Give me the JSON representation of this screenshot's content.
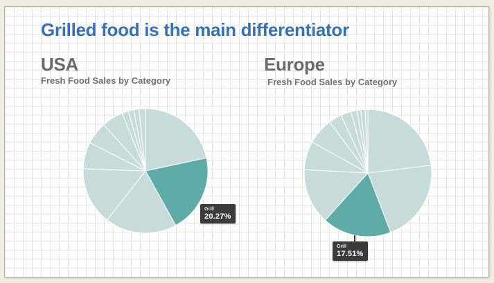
{
  "slide": {
    "title": "Grilled food is the main differentiator"
  },
  "colors": {
    "title_blue": "#3871b3",
    "heading_gray": "#696969",
    "slice_base": "#c7dcda",
    "slice_highlight": "#5faba7",
    "tooltip_bg": "#3b3b3b",
    "tooltip_text": "#ffffff",
    "paper_frame": "#f0ede5"
  },
  "chart_data": [
    {
      "type": "pie",
      "title": "USA",
      "subtitle": "Fresh Food Sales by Category",
      "unit": "%",
      "legend": "none",
      "slices": [
        {
          "label": null,
          "pct": 21.67
        },
        {
          "label": "Grill",
          "pct": 20.27,
          "highlight": true
        },
        {
          "label": null,
          "pct": 18.61
        },
        {
          "label": null,
          "pct": 15.0
        },
        {
          "label": null,
          "pct": 6.94
        },
        {
          "label": null,
          "pct": 5.83
        },
        {
          "label": null,
          "pct": 5.56
        },
        {
          "label": null,
          "pct": 1.67
        },
        {
          "label": null,
          "pct": 1.39
        },
        {
          "label": null,
          "pct": 1.39
        },
        {
          "label": null,
          "pct": 1.67
        }
      ],
      "tooltip": {
        "label": "Grill",
        "value": "20.27%"
      }
    },
    {
      "type": "pie",
      "title": "Europe",
      "subtitle": "Fresh Food Sales by Category",
      "unit": "%",
      "legend": "none",
      "slices": [
        {
          "label": null,
          "pct": 23.06
        },
        {
          "label": null,
          "pct": 21.11
        },
        {
          "label": "Grill",
          "pct": 17.51,
          "highlight": true
        },
        {
          "label": null,
          "pct": 14.17
        },
        {
          "label": null,
          "pct": 7.22
        },
        {
          "label": null,
          "pct": 6.67
        },
        {
          "label": null,
          "pct": 3.33
        },
        {
          "label": null,
          "pct": 2.64
        },
        {
          "label": null,
          "pct": 1.53
        },
        {
          "label": null,
          "pct": 0.97
        },
        {
          "label": null,
          "pct": 1.11
        },
        {
          "label": null,
          "pct": 0.69
        }
      ],
      "tooltip": {
        "label": "Grill",
        "value": "17.51%"
      }
    }
  ]
}
